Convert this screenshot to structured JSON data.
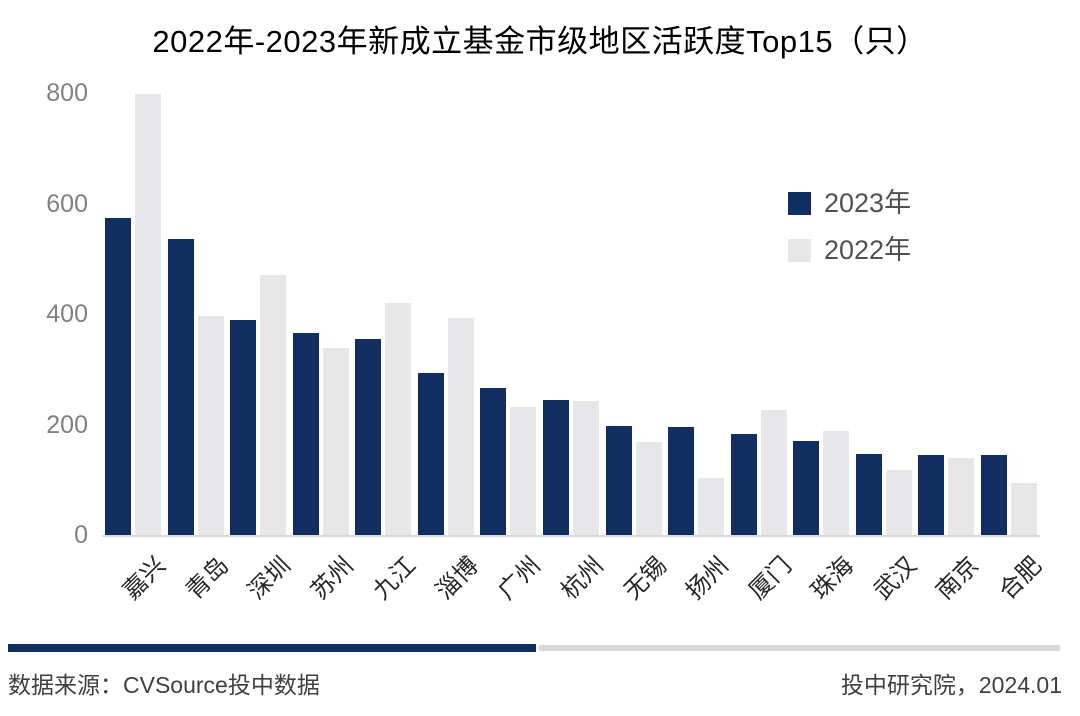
{
  "chart_data": {
    "type": "bar",
    "title": "2022年-2023年新成立基金市级地区活跃度Top15（只）",
    "categories": [
      "嘉兴",
      "青岛",
      "深圳",
      "苏州",
      "九江",
      "淄博",
      "广州",
      "杭州",
      "无锡",
      "扬州",
      "厦门",
      "珠海",
      "武汉",
      "南京",
      "合肥"
    ],
    "series": [
      {
        "name": "2023年",
        "color": "#112E61",
        "values": [
          573,
          535,
          390,
          365,
          354,
          294,
          267,
          245,
          197,
          195,
          183,
          170,
          146,
          145,
          144
        ]
      },
      {
        "name": "2022年",
        "color": "#E7E6E8",
        "values": [
          798,
          396,
          470,
          338,
          420,
          392,
          232,
          243,
          168,
          103,
          227,
          188,
          118,
          140,
          95
        ]
      }
    ],
    "xlabel": "",
    "ylabel": "",
    "ylim": [
      0,
      800
    ],
    "yticks": [
      0,
      200,
      400,
      600,
      800
    ],
    "grid": false,
    "legend_position": "upper-right",
    "axis_line_color": "#D9D9D9",
    "ytick_color": "#808080",
    "xtick_color": "#262626",
    "legend_text_color": "#515151"
  },
  "footer": {
    "source": "数据来源：CVSource投中数据",
    "credit": "投中研究院，2024.01",
    "line_navy_color": "#112E61",
    "line_gray_color": "#D9D9D9"
  }
}
